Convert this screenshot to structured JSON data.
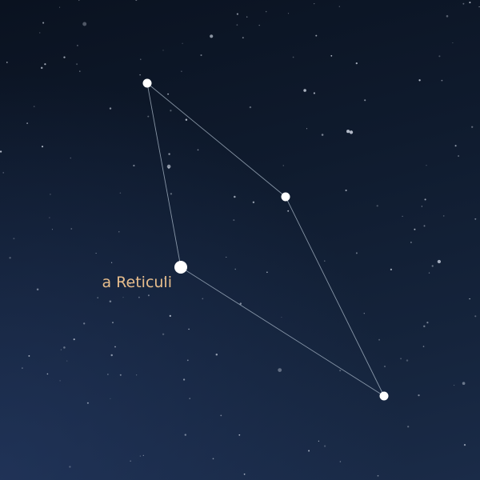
{
  "labels": {
    "main_star": "a Reticuli"
  },
  "colors": {
    "sky_top": "#0a1220",
    "sky_bottom": "#1a2b48",
    "line": "#b8c7d6",
    "star": "#ffffff",
    "label": "#e7bd8c"
  }
}
